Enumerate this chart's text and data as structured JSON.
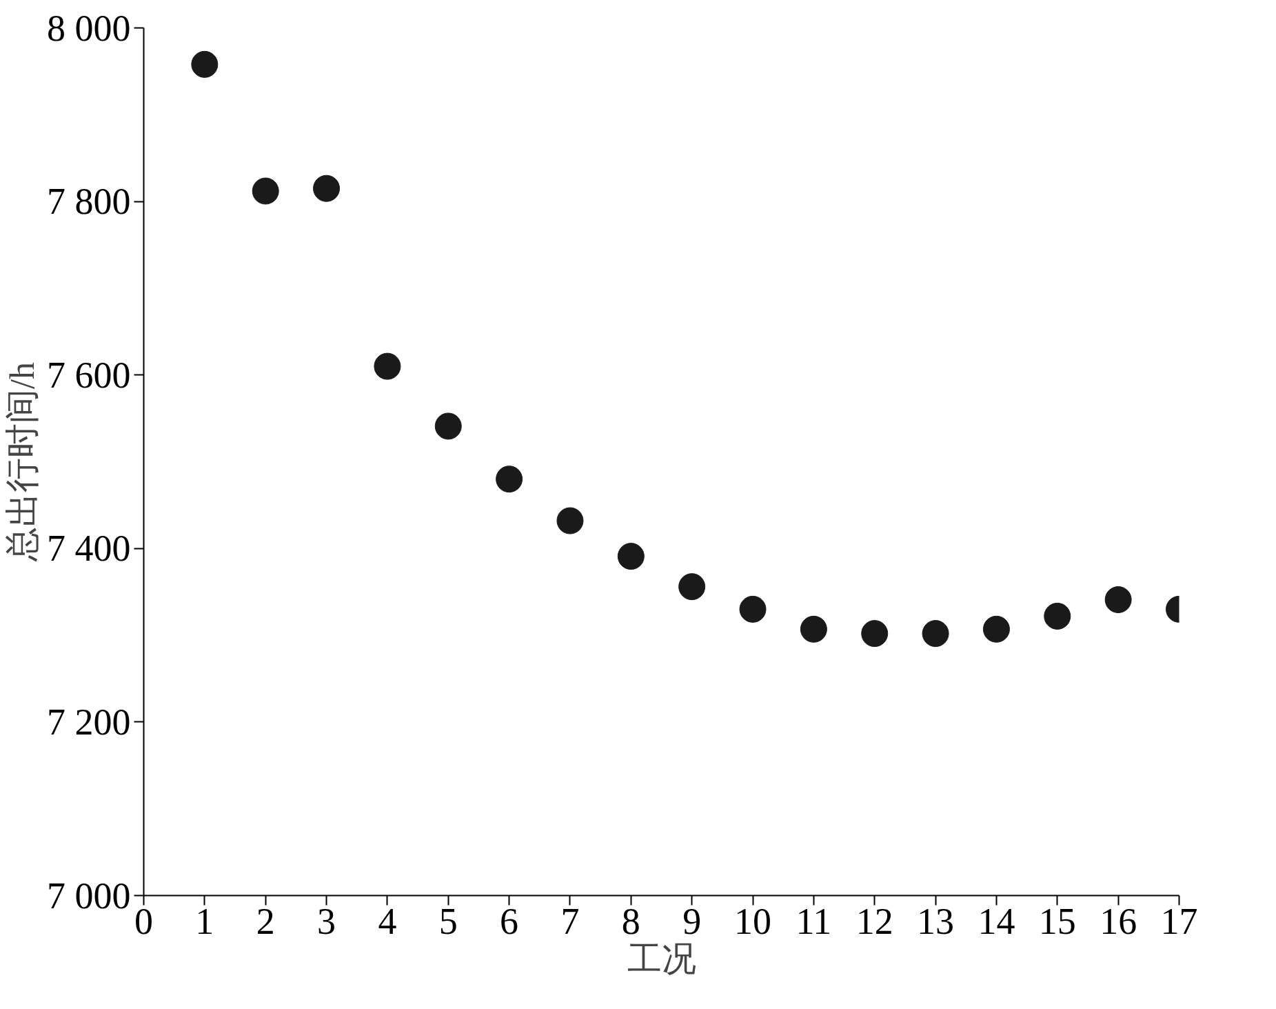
{
  "chart_data": {
    "type": "scatter",
    "xlabel": "工况",
    "ylabel": "总出行时间/h",
    "x": [
      1,
      2,
      3,
      4,
      5,
      6,
      7,
      8,
      9,
      10,
      11,
      12,
      13,
      14,
      15,
      16,
      17
    ],
    "series": [
      {
        "color": "#1a1a1a",
        "values": [
          7958,
          7812,
          7815,
          7610,
          7541,
          7480,
          7432,
          7391,
          7356,
          7330,
          7307,
          7302,
          7302,
          7307,
          7322,
          7341,
          7330
        ]
      }
    ],
    "xlim": [
      0,
      17
    ],
    "xticks": [
      0,
      1,
      2,
      3,
      4,
      5,
      6,
      7,
      8,
      9,
      10,
      11,
      12,
      13,
      14,
      15,
      16,
      17
    ],
    "ylim": [
      7000,
      8000
    ],
    "yticks": [
      {
        "value": 7000,
        "label": "7 000"
      },
      {
        "value": 7200,
        "label": "7 200"
      },
      {
        "value": 7400,
        "label": "7 400"
      },
      {
        "value": 7600,
        "label": "7 600"
      },
      {
        "value": 7800,
        "label": "7 800"
      },
      {
        "value": 8000,
        "label": "8 000"
      }
    ],
    "grid": false,
    "marker": "circle"
  }
}
